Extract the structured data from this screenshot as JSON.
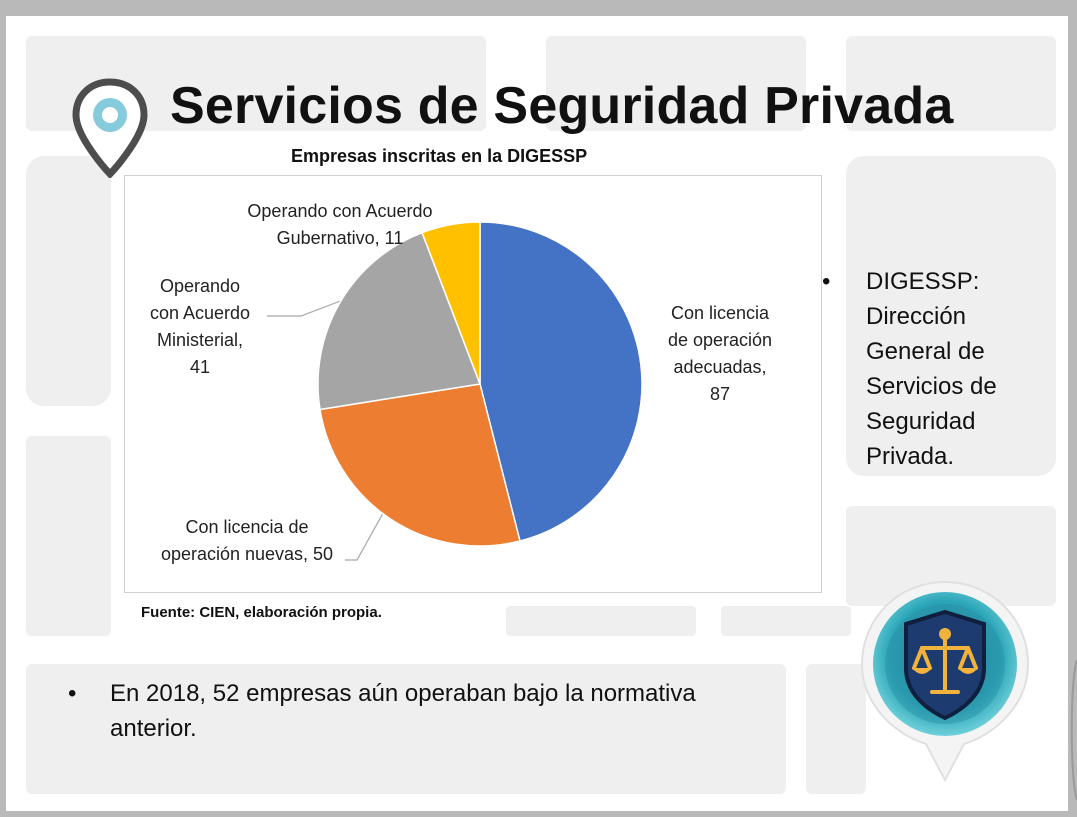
{
  "slide": {
    "title": "Servicios de Seguridad Privada",
    "bullet_right": "DIGESSP:\nDirección\nGeneral de\nServicios de\nSeguridad\nPrivada.",
    "bullet_bottom": "En 2018, 52 empresas aún operaban bajo la normativa anterior.",
    "bullet_symbol": "•",
    "icons": [
      "location-pin-icon",
      "scales-of-justice-icon"
    ]
  },
  "chart_data": {
    "type": "pie",
    "title": "Empresas inscritas en la DIGESSP",
    "source": "Fuente: CIEN, elaboración propia.",
    "slices": [
      {
        "label_lines": [
          "Con licencia",
          "de operación",
          "adecuadas,",
          "87"
        ],
        "category": "Con licencia de operación adecuadas",
        "value": 87,
        "color": "#4472C4"
      },
      {
        "label_lines": [
          "Con licencia de",
          "operación nuevas, 50"
        ],
        "category": "Con licencia de operación nuevas",
        "value": 50,
        "color": "#ED7D31"
      },
      {
        "label_lines": [
          "Operando",
          "con Acuerdo",
          "Ministerial,",
          "41"
        ],
        "category": "Operando con Acuerdo Ministerial",
        "value": 41,
        "color": "#A5A5A5"
      },
      {
        "label_lines": [
          "Operando con Acuerdo",
          "Gubernativo, 11"
        ],
        "category": "Operando con Acuerdo Gubernativo",
        "value": 11,
        "color": "#FFC000"
      }
    ],
    "legend": "none",
    "data_labels": "outside"
  }
}
